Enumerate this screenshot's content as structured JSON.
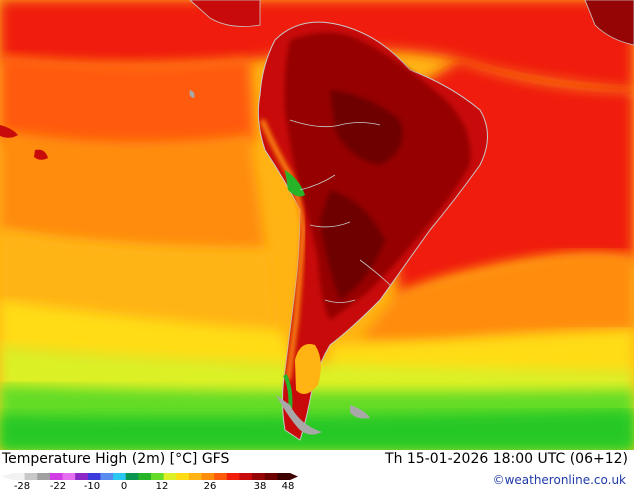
{
  "map": {
    "region": "South America",
    "variable": "Temperature High (2m)",
    "units": "°C",
    "model": "GFS"
  },
  "footer": {
    "title": "Temperature High (2m) [°C] GFS",
    "datetime": "Th 15-01-2026 18:00 UTC (06+12)",
    "credit": "©weatheronline.co.uk"
  },
  "legend": {
    "ticks": [
      "-28",
      "-22",
      "-10",
      "0",
      "12",
      "26",
      "38",
      "48"
    ],
    "colors": [
      "#f2f2f2",
      "#c8c8c8",
      "#a0a0a0",
      "#d23ce6",
      "#e66ef0",
      "#8c28c8",
      "#3c3cdc",
      "#5a8cf0",
      "#28c8f0",
      "#0a9650",
      "#28b428",
      "#64dc28",
      "#dcf028",
      "#ffdc14",
      "#ffb414",
      "#ff8c0a",
      "#ff5a0a",
      "#f01e0a",
      "#c80a0a",
      "#960505",
      "#6e0000",
      "#3c0000"
    ]
  },
  "palette": {
    "ocean_warm": "#ff8c0a",
    "ocean_hot": "#f01e0a",
    "ocean_mild": "#ffb414",
    "ocean_cool": "#ffdc14",
    "ocean_green": "#28c828",
    "land_hot": "#a00a0a",
    "land_very_hot": "#780000",
    "land_cool": "#64dc28",
    "ice": "#a8a8a8",
    "borders": "#c8c8c8"
  }
}
